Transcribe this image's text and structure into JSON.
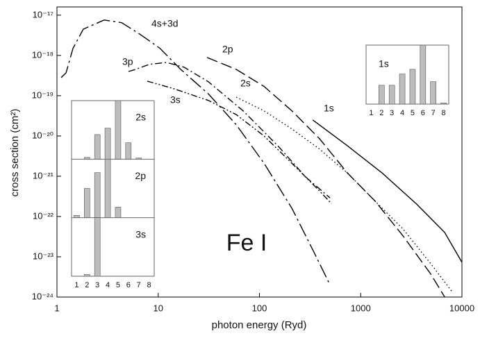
{
  "chart_data": [
    {
      "type": "line",
      "xlabel": "photon energy (Ryd)",
      "ylabel": "cross section (cm²)",
      "annotation": "Fe I",
      "log_x": true,
      "log_y": true,
      "xlim": [
        1,
        10000
      ],
      "xticks": [
        1,
        10,
        100,
        1000,
        10000
      ],
      "ylim": [
        1e-24,
        1.6e-17
      ],
      "yticks": [
        {
          "value": 1e-24,
          "label": "10⁻²⁴"
        },
        {
          "value": 1e-23,
          "label": "10⁻²³"
        },
        {
          "value": 1e-22,
          "label": "10⁻²²"
        },
        {
          "value": 1e-21,
          "label": "10⁻²¹"
        },
        {
          "value": 1e-20,
          "label": "10⁻²⁰"
        },
        {
          "value": 1e-19,
          "label": "10⁻¹⁹"
        },
        {
          "value": 1e-18,
          "label": "10⁻¹⁸"
        },
        {
          "value": 1e-17,
          "label": "10⁻¹⁷"
        }
      ],
      "series": [
        {
          "name": "4s+3d",
          "color": "#000",
          "dash": "long-dash-dot",
          "x": [
            1.1,
            1.23,
            1.44,
            1.82,
            2.93,
            4.35,
            6.45,
            10.4,
            16.7,
            31.4,
            59,
            111,
            209,
            336,
            498
          ],
          "values": [
            2.8e-19,
            3.7e-19,
            1.5e-18,
            4.5e-18,
            7.6e-18,
            6.5e-18,
            3.5e-18,
            1.5e-18,
            4.5e-19,
            1.1e-19,
            1.9e-20,
            2.1e-21,
            1.6e-22,
            1.5e-23,
            2e-24
          ]
        },
        {
          "name": "3p",
          "color": "#000",
          "dash": "dash-dot",
          "x": [
            5.09,
            5.97,
            8.18,
            12.1,
            18.0,
            31.4,
            69,
            152,
            286,
            498
          ],
          "values": [
            4e-19,
            4.5e-19,
            6e-19,
            6.7e-19,
            5.1e-19,
            2.2e-19,
            4.2e-20,
            5.7e-21,
            9.6e-22,
            2.9e-22
          ]
        },
        {
          "name": "3s",
          "color": "#000",
          "dash": "dash-dot-dot",
          "x": [
            7.8,
            14.2,
            31.4,
            59,
            111,
            209,
            393,
            514
          ],
          "values": [
            2.3e-19,
            1.5e-19,
            7.6e-20,
            3.4e-20,
            1e-20,
            2.1e-21,
            4.3e-22,
            2.1e-22
          ]
        },
        {
          "name": "2p",
          "color": "#000",
          "dash": "long-dash",
          "x": [
            30.4,
            59,
            111,
            209,
            393,
            740,
            1390,
            2620,
            4930,
            6760
          ],
          "values": [
            8.9e-19,
            4.5e-19,
            1.7e-19,
            4.2e-20,
            8.5e-21,
            1.2e-21,
            2.4e-22,
            3.3e-23,
            3.7e-24,
            1e-24
          ]
        },
        {
          "name": "2s",
          "color": "#000",
          "dash": "dotted",
          "x": [
            59,
            111,
            209,
            393,
            740,
            1390,
            2620,
            4930,
            7910
          ],
          "values": [
            9.2e-20,
            4.2e-20,
            1.5e-20,
            4.7e-21,
            1.2e-21,
            2.4e-22,
            4.9e-23,
            6.7e-24,
            1.4e-24
          ]
        },
        {
          "name": "1s",
          "color": "#000",
          "dash": "solid",
          "x": [
            336,
            740,
            1630,
            3590,
            6760,
            10000
          ],
          "values": [
            2.5e-20,
            5.7e-21,
            1.2e-21,
            2e-22,
            4e-23,
            7.3e-24
          ]
        }
      ]
    },
    {
      "type": "bar",
      "categories": [
        1,
        2,
        3,
        4,
        5,
        6,
        7,
        8
      ],
      "ylim": [
        0,
        1
      ],
      "color": "#bdbdbd",
      "panels": [
        {
          "label": "2s",
          "values": [
            0,
            0.03,
            0.42,
            0.53,
            1.0,
            0.28,
            0.02,
            0
          ]
        },
        {
          "label": "2p",
          "values": [
            0.04,
            0.5,
            0.77,
            1.0,
            0.18,
            0,
            0,
            0
          ]
        },
        {
          "label": "3s",
          "values": [
            0,
            0.03,
            1.0,
            0,
            0,
            0,
            0,
            0
          ]
        }
      ]
    },
    {
      "type": "bar",
      "categories": [
        1,
        2,
        3,
        4,
        5,
        6,
        7,
        8
      ],
      "ylim": [
        0,
        1
      ],
      "color": "#bdbdbd",
      "panels": [
        {
          "label": "1s",
          "values": [
            0,
            0.32,
            0.32,
            0.51,
            0.59,
            1.0,
            0.38,
            0.02
          ]
        }
      ]
    }
  ]
}
